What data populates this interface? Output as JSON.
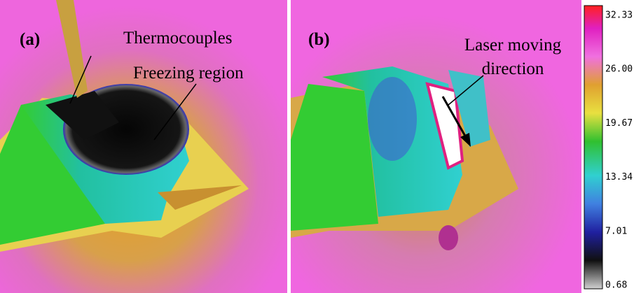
{
  "panels": [
    {
      "label": "(a)",
      "annotations": [
        "Thermocouples",
        "Freezing region"
      ]
    },
    {
      "label": "(b)",
      "annotations": [
        "Laser moving",
        "direction"
      ]
    }
  ],
  "colorbar": {
    "labels": [
      "32.33",
      "26.00",
      "19.67",
      "13.34",
      "7.01",
      "0.68"
    ]
  }
}
